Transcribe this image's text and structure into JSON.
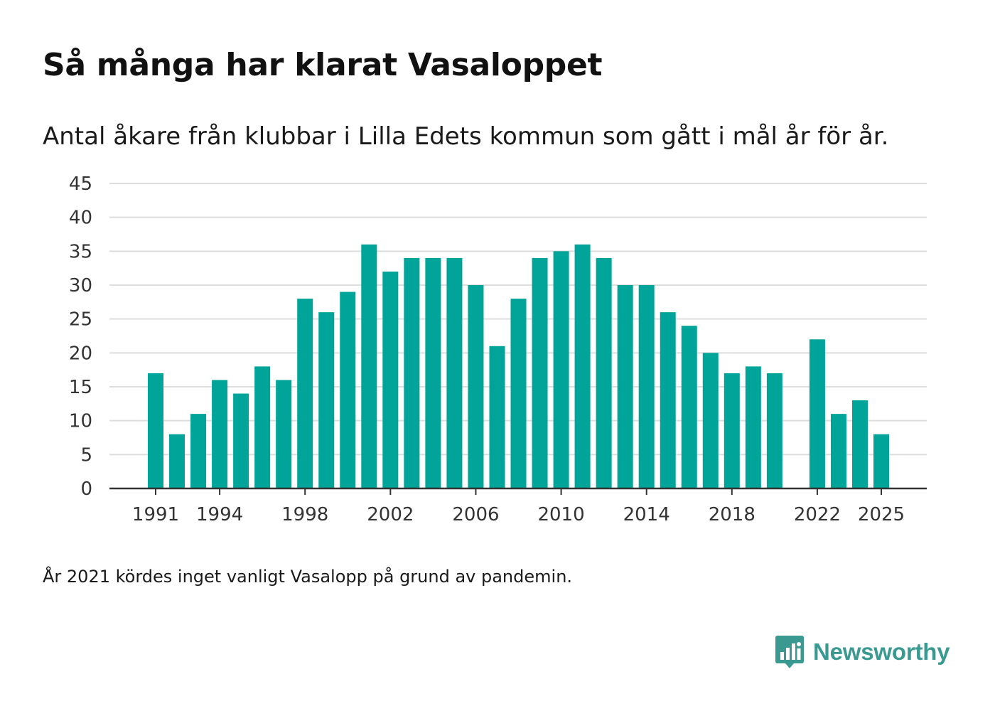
{
  "title": "Så många har klarat Vasaloppet",
  "subtitle": "Antal åkare från klubbar i Lilla Edets kommun som gått i mål år för år.",
  "footnote": "År 2021 kördes inget vanligt Vasalopp på grund av pandemin.",
  "brand": {
    "name": "Newsworthy",
    "logo_icon": "newsworthy-logo-icon",
    "color": "#3a9a92"
  },
  "colors": {
    "bar": "#00a499",
    "grid": "#dddddd",
    "axis": "#333333"
  },
  "chart_data": {
    "type": "bar",
    "title": "Så många har klarat Vasaloppet",
    "subtitle": "Antal åkare från klubbar i Lilla Edets kommun som gått i mål år för år.",
    "xlabel": "",
    "ylabel": "",
    "ylim": [
      0,
      45
    ],
    "yticks": [
      0,
      5,
      10,
      15,
      20,
      25,
      30,
      35,
      40,
      45
    ],
    "xtick_labels": [
      "1991",
      "1994",
      "1998",
      "2002",
      "2006",
      "2010",
      "2014",
      "2018",
      "2022",
      "2025"
    ],
    "grid": true,
    "categories": [
      1991,
      1992,
      1993,
      1994,
      1995,
      1996,
      1997,
      1998,
      1999,
      2000,
      2001,
      2002,
      2003,
      2004,
      2005,
      2006,
      2007,
      2008,
      2009,
      2010,
      2011,
      2012,
      2013,
      2014,
      2015,
      2016,
      2017,
      2018,
      2019,
      2020,
      2021,
      2022,
      2023,
      2024,
      2025
    ],
    "values": [
      17,
      8,
      11,
      16,
      14,
      18,
      16,
      28,
      26,
      29,
      36,
      32,
      34,
      34,
      34,
      30,
      21,
      28,
      34,
      35,
      36,
      34,
      30,
      30,
      26,
      24,
      20,
      17,
      18,
      17,
      null,
      22,
      11,
      13,
      8
    ]
  }
}
